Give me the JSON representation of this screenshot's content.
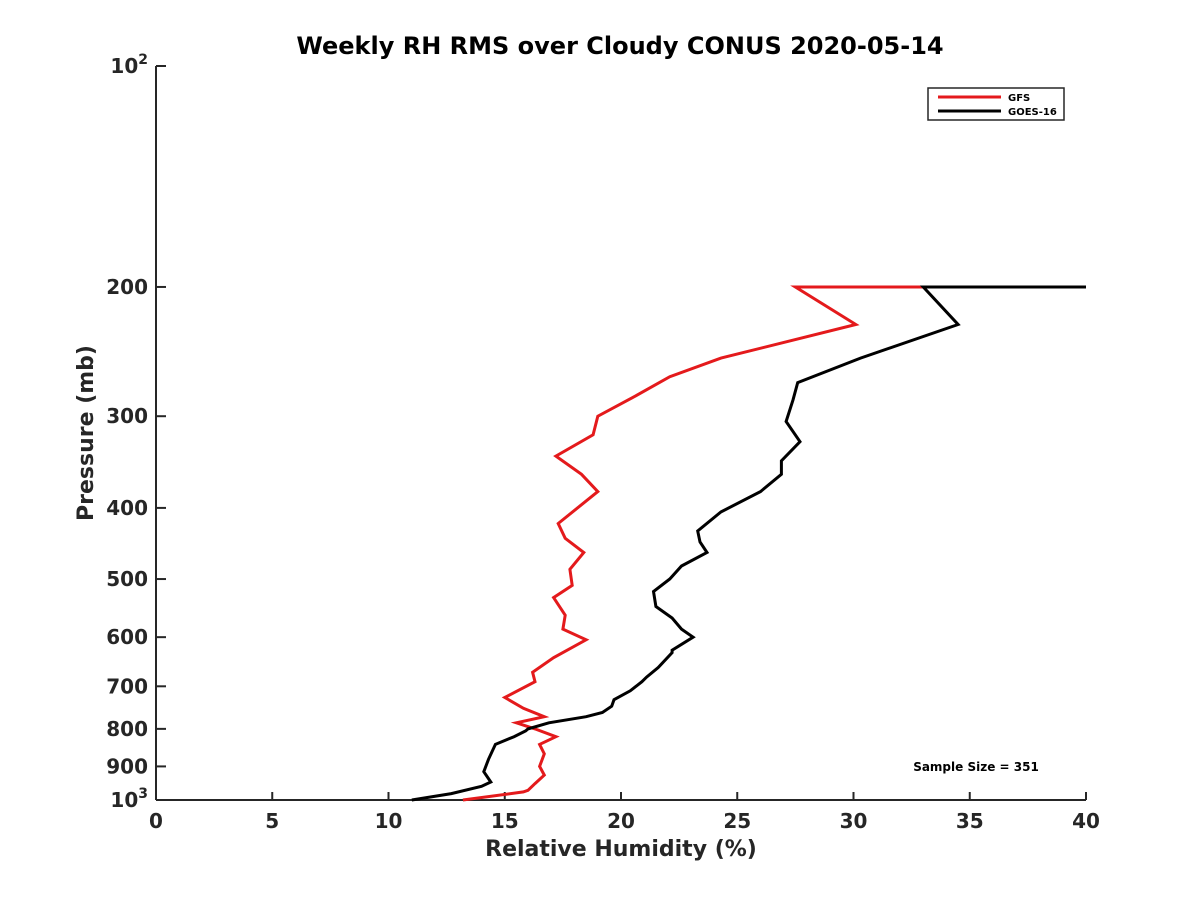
{
  "chart_data": {
    "type": "line",
    "title": "Weekly RH RMS over Cloudy CONUS 2020-05-14",
    "xlabel": "Relative Humidity (%)",
    "ylabel": "Pressure (mb)",
    "xlim": [
      0,
      40
    ],
    "ylim": [
      100,
      1000
    ],
    "y_scale": "log",
    "y_reversed": true,
    "grid": false,
    "legend_position": "top-right",
    "x_ticks": [
      "0",
      "5",
      "10",
      "15",
      "20",
      "25",
      "30",
      "35",
      "40"
    ],
    "y_ticks": [
      {
        "value": 100,
        "base": "10",
        "exp": "2"
      },
      {
        "value": 200,
        "label": "200"
      },
      {
        "value": 300,
        "label": "300"
      },
      {
        "value": 400,
        "label": "400"
      },
      {
        "value": 500,
        "label": "500"
      },
      {
        "value": 600,
        "label": "600"
      },
      {
        "value": 700,
        "label": "700"
      },
      {
        "value": 800,
        "label": "800"
      },
      {
        "value": 900,
        "label": "900"
      },
      {
        "value": 1000,
        "base": "10",
        "exp": "3"
      }
    ],
    "annotation": "Sample Size = 351",
    "series": [
      {
        "name": "GFS",
        "color": "#e41a1c",
        "points": [
          [
            40.0,
            200
          ],
          [
            27.5,
            200
          ],
          [
            30.1,
            225
          ],
          [
            24.3,
            250
          ],
          [
            22.1,
            265
          ],
          [
            20.5,
            283
          ],
          [
            19.0,
            300
          ],
          [
            18.8,
            318
          ],
          [
            17.2,
            340
          ],
          [
            18.3,
            360
          ],
          [
            19.0,
            380
          ],
          [
            17.3,
            420
          ],
          [
            17.6,
            440
          ],
          [
            18.4,
            460
          ],
          [
            17.8,
            485
          ],
          [
            17.9,
            510
          ],
          [
            17.1,
            530
          ],
          [
            17.6,
            560
          ],
          [
            17.5,
            585
          ],
          [
            18.5,
            605
          ],
          [
            17.1,
            640
          ],
          [
            16.2,
            670
          ],
          [
            16.3,
            690
          ],
          [
            15.0,
            725
          ],
          [
            15.8,
            750
          ],
          [
            16.7,
            770
          ],
          [
            15.5,
            785
          ],
          [
            16.3,
            800
          ],
          [
            17.2,
            820
          ],
          [
            16.5,
            840
          ],
          [
            16.7,
            865
          ],
          [
            16.5,
            900
          ],
          [
            16.7,
            925
          ],
          [
            16.3,
            950
          ],
          [
            16.0,
            970
          ],
          [
            15.8,
            975
          ],
          [
            13.2,
            1000
          ]
        ]
      },
      {
        "name": "GOES-16",
        "color": "#000000",
        "points": [
          [
            40.0,
            200
          ],
          [
            33.0,
            200
          ],
          [
            34.5,
            225
          ],
          [
            30.3,
            250
          ],
          [
            27.6,
            270
          ],
          [
            27.4,
            285
          ],
          [
            27.1,
            305
          ],
          [
            27.7,
            325
          ],
          [
            26.9,
            345
          ],
          [
            26.9,
            360
          ],
          [
            26.0,
            380
          ],
          [
            24.3,
            405
          ],
          [
            23.3,
            430
          ],
          [
            23.4,
            445
          ],
          [
            23.7,
            460
          ],
          [
            22.6,
            480
          ],
          [
            22.1,
            500
          ],
          [
            21.4,
            520
          ],
          [
            21.5,
            545
          ],
          [
            22.2,
            565
          ],
          [
            22.6,
            585
          ],
          [
            23.1,
            600
          ],
          [
            22.2,
            625
          ],
          [
            22.2,
            630
          ],
          [
            21.6,
            660
          ],
          [
            21.1,
            680
          ],
          [
            20.9,
            690
          ],
          [
            20.4,
            710
          ],
          [
            19.7,
            730
          ],
          [
            19.6,
            745
          ],
          [
            19.2,
            760
          ],
          [
            18.5,
            770
          ],
          [
            16.9,
            785
          ],
          [
            16.0,
            800
          ],
          [
            15.9,
            805
          ],
          [
            15.4,
            820
          ],
          [
            14.6,
            840
          ],
          [
            14.3,
            880
          ],
          [
            14.1,
            915
          ],
          [
            14.3,
            935
          ],
          [
            14.4,
            945
          ],
          [
            14.0,
            958
          ],
          [
            12.7,
            980
          ],
          [
            11.0,
            1000
          ]
        ]
      }
    ]
  }
}
